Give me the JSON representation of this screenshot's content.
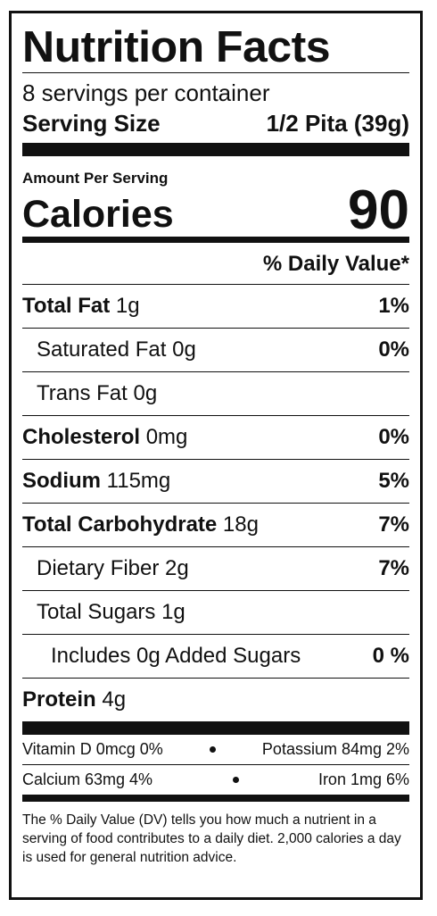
{
  "title": "Nutrition Facts",
  "servings": "8 servings per container",
  "serving_size": {
    "label": "Serving Size",
    "value": "1/2 Pita (39g)"
  },
  "amount_per_serving": "Amount Per Serving",
  "calories": {
    "label": "Calories",
    "value": "90"
  },
  "daily_value_header": "% Daily Value*",
  "nutrients": [
    {
      "name": "Total Fat",
      "amount": "1g",
      "dv": "1%"
    },
    {
      "name": "Saturated Fat",
      "amount": "0g",
      "dv": "0%"
    },
    {
      "name": "Trans Fat",
      "amount": "0g"
    },
    {
      "name": "Cholesterol",
      "amount": "0mg",
      "dv": "0%"
    },
    {
      "name": "Sodium",
      "amount": "115mg",
      "dv": "5%"
    },
    {
      "name": "Total Carbohydrate",
      "amount": "18g",
      "dv": "7%"
    },
    {
      "name": "Dietary Fiber",
      "amount": "2g",
      "dv": "7%"
    },
    {
      "name": "Total Sugars",
      "amount": "1g"
    },
    {
      "name": "Includes 0g Added Sugars",
      "dv": "0 %"
    },
    {
      "name": "Protein",
      "amount": "4g"
    }
  ],
  "vitamins": [
    [
      "Vitamin D 0mcg 0%",
      "Potassium 84mg 2%"
    ],
    [
      "Calcium 63mg 4%",
      "Iron 1mg 6%"
    ]
  ],
  "footnote": "The % Daily Value (DV) tells you how much a nutrient in a serving of food contributes to a daily diet. 2,000 calories a day is used for general nutrition advice."
}
